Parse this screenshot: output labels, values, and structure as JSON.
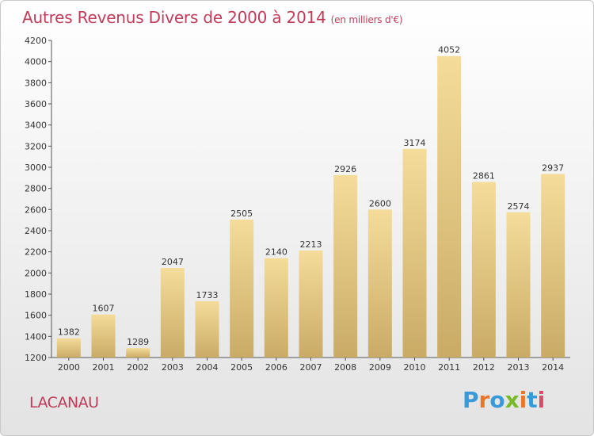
{
  "header": {
    "title": "Autres Revenus Divers de 2000 à 2014",
    "unit": "(en milliers d'€)"
  },
  "footer": {
    "place": "LACANAU",
    "logo": "Proxiti"
  },
  "colors": {
    "title": "#c03c5a",
    "bar_top": "#f5dc9a",
    "bar_bottom": "#c9ab66",
    "logo_letters": [
      "#3a9ad9",
      "#e8762c",
      "#3a9ad9",
      "#7ab929",
      "#e8762c",
      "#3a9ad9",
      "#d94a6a"
    ]
  },
  "chart_data": {
    "type": "bar",
    "title": "Autres Revenus Divers de 2000 à 2014",
    "categories": [
      "2000",
      "2001",
      "2002",
      "2003",
      "2004",
      "2005",
      "2006",
      "2007",
      "2008",
      "2009",
      "2010",
      "2011",
      "2012",
      "2013",
      "2014"
    ],
    "values": [
      1382,
      1607,
      1289,
      2047,
      1733,
      2505,
      2140,
      2213,
      2926,
      2600,
      3174,
      4052,
      2861,
      2574,
      2937
    ],
    "ylim": [
      1200,
      4200
    ],
    "yticks": [
      1200,
      1400,
      1600,
      1800,
      2000,
      2200,
      2400,
      2600,
      2800,
      3000,
      3200,
      3400,
      3600,
      3800,
      4000,
      4200
    ],
    "grid": false,
    "data_labels": true
  }
}
